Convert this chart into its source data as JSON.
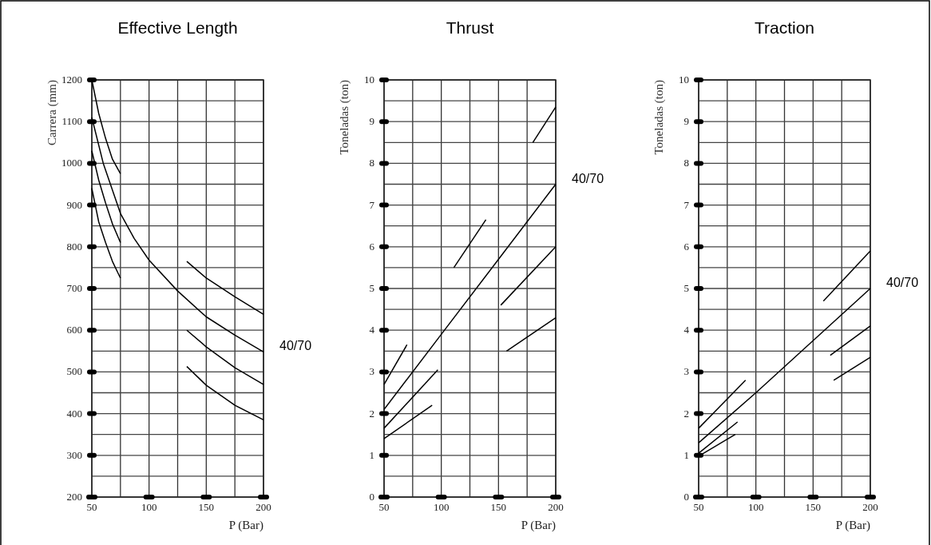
{
  "chart_data": [
    {
      "type": "line",
      "title": "Effective Length",
      "xlabel": "P (Bar)",
      "ylabel": "Carrera (mm)",
      "xlim": [
        50,
        200
      ],
      "ylim": [
        200,
        1200
      ],
      "grid": true,
      "xticks": [
        50,
        {
          "value": 75,
          "label": null
        },
        100,
        {
          "value": 125,
          "label": null
        },
        150,
        {
          "value": 175,
          "label": null
        },
        200
      ],
      "yticks": [
        200,
        {
          "value": 250,
          "label": null
        },
        300,
        {
          "value": 350,
          "label": null
        },
        400,
        {
          "value": 450,
          "label": null
        },
        500,
        {
          "value": 550,
          "label": null
        },
        600,
        {
          "value": 650,
          "label": null
        },
        700,
        {
          "value": 750,
          "label": null
        },
        800,
        {
          "value": 850,
          "label": null
        },
        900,
        {
          "value": 950,
          "label": null
        },
        1000,
        {
          "value": 1050,
          "label": null
        },
        1100,
        {
          "value": 1150,
          "label": null
        },
        1200
      ],
      "annotations": [
        "40/70"
      ],
      "series": [
        {
          "color": "#000000",
          "x": [
            50,
            56,
            62,
            68,
            75
          ],
          "values": [
            1200,
            1120,
            1060,
            1010,
            975
          ]
        },
        {
          "color": "#000000",
          "x": [
            50,
            60,
            75,
            87,
            100,
            125,
            150,
            175,
            200
          ],
          "values": [
            1110,
            1000,
            880,
            820,
            768,
            694,
            632,
            588,
            548
          ]
        },
        {
          "color": "#000000",
          "x": [
            50,
            56,
            62,
            68,
            75
          ],
          "values": [
            1030,
            960,
            905,
            855,
            810
          ]
        },
        {
          "color": "#000000",
          "x": [
            50,
            56,
            62,
            68,
            75
          ],
          "values": [
            940,
            860,
            810,
            765,
            725
          ]
        },
        {
          "color": "#000000",
          "x": [
            133,
            150,
            175,
            200
          ],
          "values": [
            765,
            725,
            680,
            638
          ]
        },
        {
          "color": "#000000",
          "x": [
            133,
            150,
            175,
            200
          ],
          "values": [
            600,
            560,
            510,
            470
          ]
        },
        {
          "color": "#000000",
          "x": [
            133,
            150,
            175,
            200
          ],
          "values": [
            513,
            468,
            420,
            385
          ]
        }
      ]
    },
    {
      "type": "line",
      "title": "Thrust",
      "xlabel": "P (Bar)",
      "ylabel": "Toneladas (ton)",
      "xlim": [
        50,
        200
      ],
      "ylim": [
        0,
        10
      ],
      "grid": true,
      "xticks": [
        50,
        {
          "value": 75,
          "label": null
        },
        100,
        {
          "value": 125,
          "label": null
        },
        150,
        {
          "value": 175,
          "label": null
        },
        200
      ],
      "yticks": [
        0,
        {
          "value": 0.5,
          "label": null
        },
        1,
        {
          "value": 1.5,
          "label": null
        },
        2,
        {
          "value": 2.5,
          "label": null
        },
        3,
        {
          "value": 3.5,
          "label": null
        },
        4,
        {
          "value": 4.5,
          "label": null
        },
        5,
        {
          "value": 5.5,
          "label": null
        },
        6,
        {
          "value": 6.5,
          "label": null
        },
        7,
        {
          "value": 7.5,
          "label": null
        },
        8,
        {
          "value": 8.5,
          "label": null
        },
        9,
        {
          "value": 9.5,
          "label": null
        },
        10
      ],
      "annotations": [
        "40/70"
      ],
      "series": [
        {
          "color": "#000000",
          "x": [
            50,
            70
          ],
          "values": [
            2.7,
            3.65
          ]
        },
        {
          "color": "#000000",
          "x": [
            50,
            100,
            150,
            200
          ],
          "values": [
            2.1,
            3.9,
            5.7,
            7.5
          ]
        },
        {
          "color": "#000000",
          "x": [
            50,
            97
          ],
          "values": [
            1.65,
            3.05
          ]
        },
        {
          "color": "#000000",
          "x": [
            50,
            92
          ],
          "values": [
            1.4,
            2.2
          ]
        },
        {
          "color": "#000000",
          "x": [
            111,
            139
          ],
          "values": [
            5.5,
            6.65
          ]
        },
        {
          "color": "#000000",
          "x": [
            180,
            200
          ],
          "values": [
            8.5,
            9.35
          ]
        },
        {
          "color": "#000000",
          "x": [
            152,
            200
          ],
          "values": [
            4.6,
            6.0
          ]
        },
        {
          "color": "#000000",
          "x": [
            157,
            200
          ],
          "values": [
            3.5,
            4.3
          ]
        }
      ]
    },
    {
      "type": "line",
      "title": "Traction",
      "xlabel": "P (Bar)",
      "ylabel": "Toneladas (ton)",
      "xlim": [
        50,
        200
      ],
      "ylim": [
        0,
        10
      ],
      "grid": true,
      "xticks": [
        50,
        {
          "value": 75,
          "label": null
        },
        100,
        {
          "value": 125,
          "label": null
        },
        150,
        {
          "value": 175,
          "label": null
        },
        200
      ],
      "yticks": [
        0,
        {
          "value": 0.5,
          "label": null
        },
        1,
        {
          "value": 1.5,
          "label": null
        },
        2,
        {
          "value": 2.5,
          "label": null
        },
        3,
        {
          "value": 3.5,
          "label": null
        },
        4,
        {
          "value": 4.5,
          "label": null
        },
        5,
        {
          "value": 5.5,
          "label": null
        },
        6,
        {
          "value": 6.5,
          "label": null
        },
        7,
        {
          "value": 7.5,
          "label": null
        },
        8,
        {
          "value": 8.5,
          "label": null
        },
        9,
        {
          "value": 9.5,
          "label": null
        },
        10
      ],
      "annotations": [
        "40/70"
      ],
      "series": [
        {
          "color": "#000000",
          "x": [
            50,
            91
          ],
          "values": [
            1.65,
            2.8
          ]
        },
        {
          "color": "#000000",
          "x": [
            50,
            100,
            150,
            200
          ],
          "values": [
            1.3,
            2.5,
            3.75,
            5.0
          ]
        },
        {
          "color": "#000000",
          "x": [
            50,
            84
          ],
          "values": [
            1.05,
            1.8
          ]
        },
        {
          "color": "#000000",
          "x": [
            50,
            82
          ],
          "values": [
            0.98,
            1.5
          ]
        },
        {
          "color": "#000000",
          "x": [
            159,
            200
          ],
          "values": [
            4.7,
            5.9
          ]
        },
        {
          "color": "#000000",
          "x": [
            165,
            200
          ],
          "values": [
            3.4,
            4.1
          ]
        },
        {
          "color": "#000000",
          "x": [
            168,
            200
          ],
          "values": [
            2.8,
            3.35
          ]
        }
      ]
    }
  ]
}
